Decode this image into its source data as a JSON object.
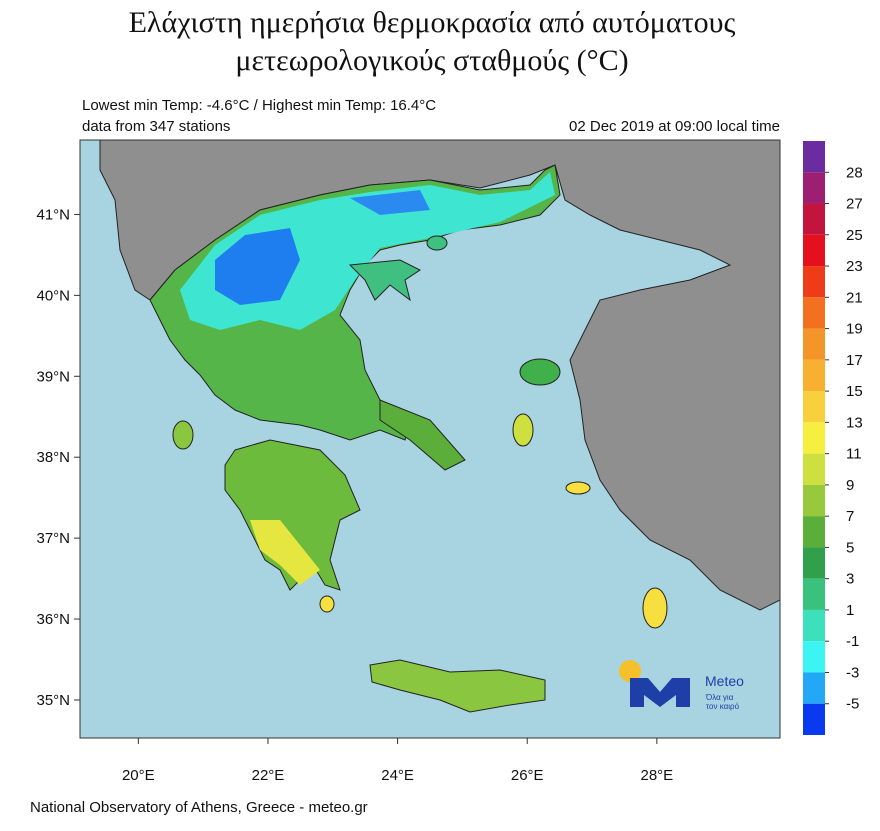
{
  "header": {
    "title_lines": [
      "Ελάχιστη ημερήσια θερμοκρασία από αυτόματους",
      "μετεωρολογικούς σταθμούς (°C)"
    ],
    "stats": "Lowest min Temp: -4.6°C / Highest min Temp: 16.4°C",
    "stations": "data from 347 stations",
    "time": "02 Dec 2019 at 09:00 local time"
  },
  "map": {
    "lon_range": [
      19.1,
      29.9
    ],
    "lat_range": [
      34.53,
      41.92
    ],
    "lat_ticks": [
      {
        "value": 41,
        "label": "41°N"
      },
      {
        "value": 40,
        "label": "40°N"
      },
      {
        "value": 39,
        "label": "39°N"
      },
      {
        "value": 38,
        "label": "38°N"
      },
      {
        "value": 37,
        "label": "37°N"
      },
      {
        "value": 36,
        "label": "36°N"
      },
      {
        "value": 35,
        "label": "35°N"
      }
    ],
    "lon_ticks": [
      {
        "value": 20,
        "label": "20°E"
      },
      {
        "value": 22,
        "label": "22°E"
      },
      {
        "value": 24,
        "label": "24°E"
      },
      {
        "value": 26,
        "label": "26°E"
      },
      {
        "value": 28,
        "label": "28°E"
      }
    ]
  },
  "colorbar": {
    "colors": [
      "#6b2ca2",
      "#9c1f72",
      "#c3143e",
      "#e5101e",
      "#ef3c18",
      "#f27020",
      "#f4952a",
      "#f7b030",
      "#f8cf3c",
      "#f5f040",
      "#cde040",
      "#98c83c",
      "#5cae3a",
      "#30a04a",
      "#38c27c",
      "#3ee0bc",
      "#3cf4f2",
      "#22a8f4",
      "#0a3af0"
    ],
    "labels": [
      28,
      27,
      25,
      23,
      21,
      19,
      17,
      15,
      13,
      11,
      9,
      7,
      5,
      3,
      1,
      -1,
      -3,
      -5
    ]
  },
  "logo": {
    "name": "Meteo",
    "slogan_lines": [
      "Όλα για",
      "τον καιρό"
    ]
  },
  "footer": "National Observatory of Athens, Greece - meteo.gr"
}
